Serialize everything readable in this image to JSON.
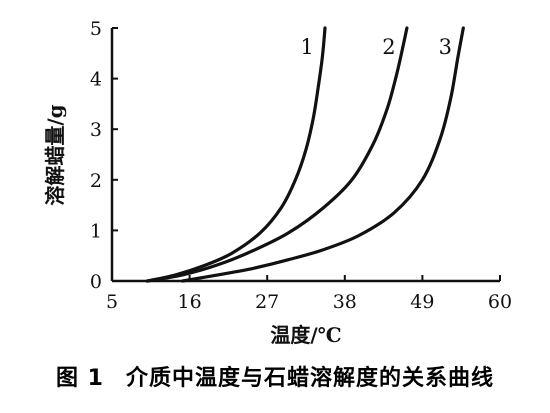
{
  "caption": {
    "number": "图 1",
    "text": "介质中温度与石蜡溶解度的关系曲线"
  },
  "chart_data": {
    "type": "line",
    "xlabel": "温度/℃",
    "ylabel": "溶解蜡量/g",
    "xlim": [
      5,
      60
    ],
    "ylim": [
      0,
      5
    ],
    "xticks": [
      5,
      16,
      27,
      38,
      49,
      60
    ],
    "yticks": [
      0,
      1,
      2,
      3,
      4,
      5
    ],
    "grid": false,
    "legend": "none",
    "series": [
      {
        "name": "1",
        "x": [
          10,
          14,
          18,
          22,
          26,
          29,
          31,
          32.5,
          33.5,
          34.2,
          34.8,
          35.2
        ],
        "y": [
          0,
          0.12,
          0.3,
          0.55,
          0.95,
          1.45,
          2.0,
          2.6,
          3.2,
          3.8,
          4.4,
          5.0
        ]
      },
      {
        "name": "2",
        "x": [
          10,
          15,
          20,
          25,
          30,
          35,
          39,
          42,
          44,
          45.2,
          46.2,
          46.8
        ],
        "y": [
          0,
          0.12,
          0.32,
          0.6,
          0.95,
          1.45,
          2.0,
          2.7,
          3.4,
          4.0,
          4.6,
          5.0
        ]
      },
      {
        "name": "3",
        "x": [
          15,
          20,
          25,
          30,
          35,
          40,
          45,
          49,
          51.5,
          53,
          54,
          54.8
        ],
        "y": [
          0,
          0.12,
          0.25,
          0.42,
          0.62,
          0.9,
          1.35,
          2.0,
          2.8,
          3.6,
          4.4,
          5.0
        ]
      }
    ]
  }
}
